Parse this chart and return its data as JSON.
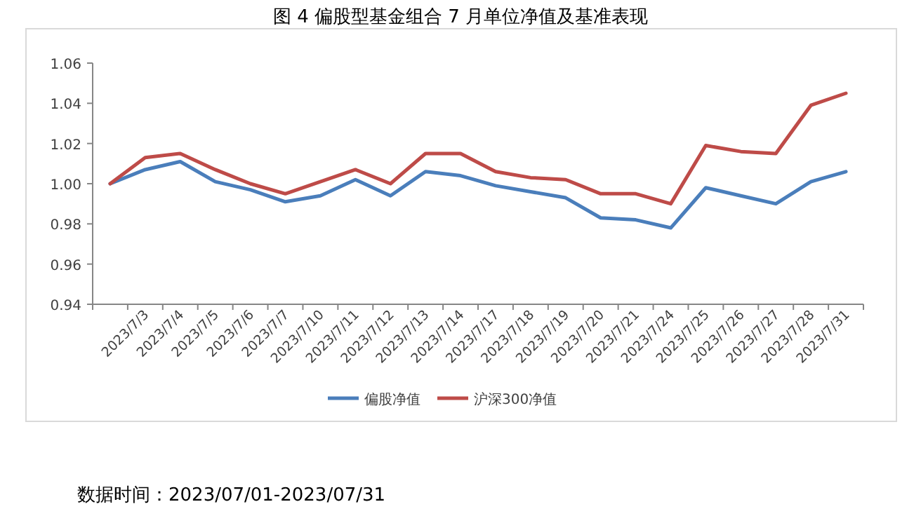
{
  "chart_data": {
    "type": "line",
    "title": "图 4 偏股型基金组合 7 月单位净值及基准表现",
    "categories": [
      null,
      "2023/7/3",
      "2023/7/4",
      "2023/7/5",
      "2023/7/6",
      "2023/7/7",
      "2023/7/10",
      "2023/7/11",
      "2023/7/12",
      "2023/7/13",
      "2023/7/14",
      "2023/7/17",
      "2023/7/18",
      "2023/7/19",
      "2023/7/20",
      "2023/7/21",
      "2023/7/24",
      "2023/7/25",
      "2023/7/26",
      "2023/7/27",
      "2023/7/28",
      "2023/7/31"
    ],
    "series": [
      {
        "name": "偏股净值",
        "color": "#4a7ebb",
        "values": [
          1.0,
          1.007,
          1.011,
          1.001,
          0.997,
          0.991,
          0.994,
          1.002,
          0.994,
          1.006,
          1.004,
          0.999,
          0.996,
          0.993,
          0.983,
          0.982,
          0.978,
          0.998,
          0.994,
          0.99,
          1.001,
          1.006
        ]
      },
      {
        "name": "沪深300净值",
        "color": "#be4b48",
        "values": [
          1.0,
          1.013,
          1.015,
          1.007,
          1.0,
          0.995,
          1.001,
          1.007,
          1.0,
          1.015,
          1.015,
          1.006,
          1.003,
          1.002,
          0.995,
          0.995,
          0.99,
          1.019,
          1.016,
          1.015,
          1.039,
          1.045
        ]
      }
    ],
    "ylim": [
      0.94,
      1.06
    ],
    "yticks": [
      {
        "value": 0.94,
        "label": "0.94"
      },
      {
        "value": 0.96,
        "label": "0.96"
      },
      {
        "value": 0.98,
        "label": "0.98"
      },
      {
        "value": 1.0,
        "label": "1.00"
      },
      {
        "value": 1.02,
        "label": "1.02"
      },
      {
        "value": 1.04,
        "label": "1.04"
      },
      {
        "value": 1.06,
        "label": "1.06"
      }
    ],
    "grid": false,
    "legend": "bottom",
    "marker": "none",
    "line_style": "solid",
    "annotations": [
      "数据时间：2023/07/01-2023/07/31"
    ]
  }
}
